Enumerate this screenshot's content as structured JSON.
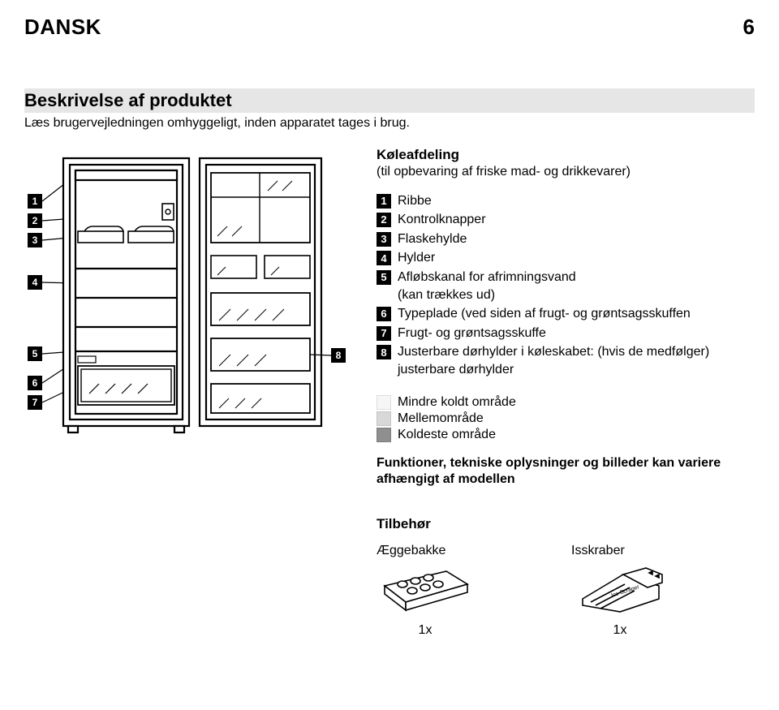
{
  "header": {
    "lang": "DANSK",
    "page": "6"
  },
  "section": {
    "title": "Beskrivelse af produktet",
    "subtitle": "Læs brugervejledningen omhyggeligt, inden apparatet tages i brug."
  },
  "compartment": {
    "heading": "Køleafdeling",
    "sub": "(til opbevaring af friske mad- og drikkevarer)"
  },
  "items": [
    {
      "n": "1",
      "label": "Ribbe"
    },
    {
      "n": "2",
      "label": "Kontrolknapper"
    },
    {
      "n": "3",
      "label": "Flaskehylde"
    },
    {
      "n": "4",
      "label": "Hylder"
    },
    {
      "n": "5",
      "label": "Afløbskanal for afrimningsvand",
      "sub": "(kan trækkes ud)"
    },
    {
      "n": "6",
      "label": "Typeplade (ved siden af frugt- og grøntsagsskuffen"
    },
    {
      "n": "7",
      "label": "Frugt- og grøntsagsskuffe"
    },
    {
      "n": "8",
      "label": "Justerbare dørhylder i køleskabet: (hvis de medfølger) justerbare dørhylder"
    }
  ],
  "zones": [
    {
      "label": "Mindre koldt område",
      "color": "#f6f6f6",
      "border": "#dddddd"
    },
    {
      "label": "Mellemområde",
      "color": "#d8d8d8",
      "border": "#c4c4c4"
    },
    {
      "label": "Koldeste område",
      "color": "#8f8f8f",
      "border": "#7e7e7e"
    }
  ],
  "func_note": "Funktioner, tekniske oplysninger og billeder kan variere afhængigt af modellen",
  "accessories": {
    "title": "Tilbehør",
    "items": [
      {
        "label": "Æggebakke",
        "qty": "1x"
      },
      {
        "label": "Isskraber",
        "qty": "1x"
      }
    ]
  },
  "diagram": {
    "numbers_left": [
      "1",
      "2",
      "3",
      "4",
      "5",
      "6",
      "7"
    ],
    "number_right": "8",
    "colors": {
      "stroke": "#000000",
      "fill_body": "#ffffff",
      "shelf": "#000000",
      "door_panel": "#ffffff"
    }
  }
}
